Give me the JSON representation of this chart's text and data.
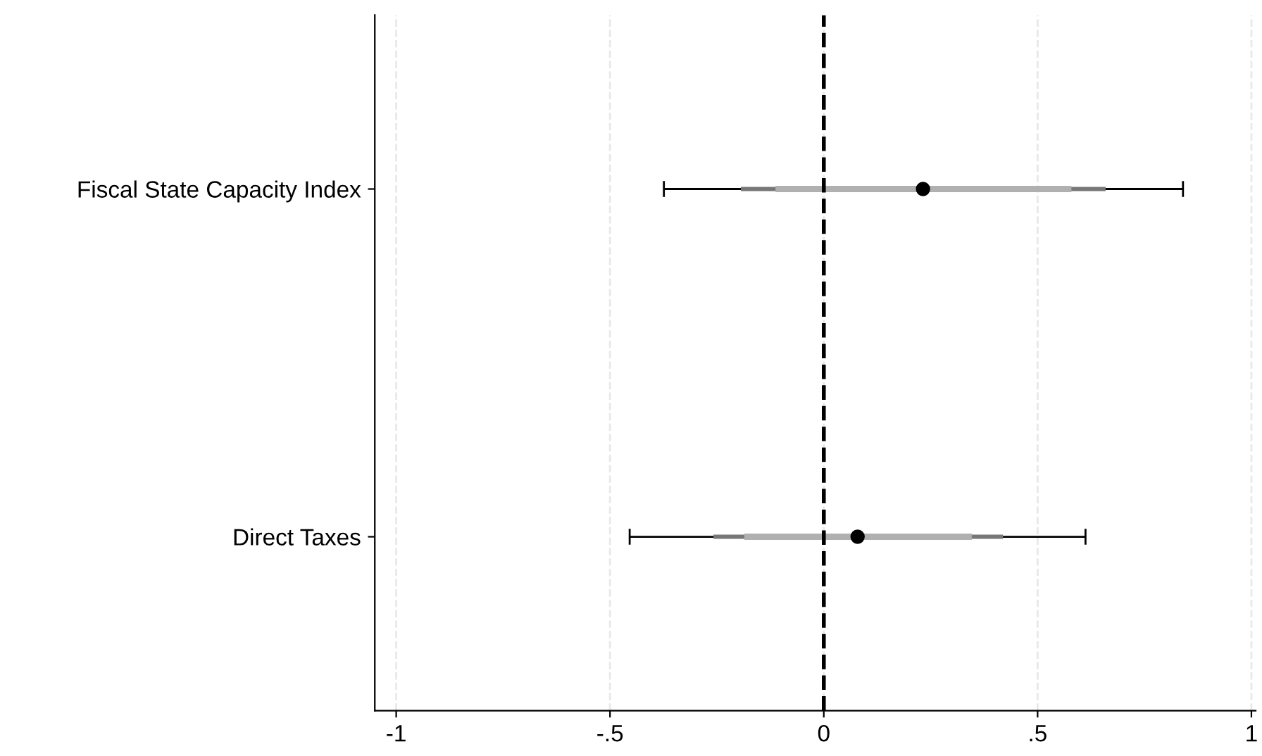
{
  "chart_data": {
    "type": "scatter",
    "orientation": "horizontal",
    "categories": [
      "Fiscal State Capacity Index",
      "Direct Taxes"
    ],
    "series": [
      {
        "type": "bar",
        "color": "#777777",
        "base": [
          -0.194,
          -0.258
        ],
        "values": [
          0.853,
          0.677
        ]
      },
      {
        "type": "bar",
        "color": "#b0b0b0",
        "base": [
          -0.113,
          -0.186
        ],
        "values": [
          0.692,
          0.532
        ]
      },
      {
        "color": "#000000",
        "marker": "circle",
        "values": [
          0.232,
          0.079
        ],
        "errors": [
          [
            -0.374,
            0.84
          ],
          [
            -0.454,
            0.612
          ]
        ]
      }
    ],
    "xlim": [
      -1.05,
      1.01
    ],
    "xticks": [
      {
        "value": -1,
        "label": "-1"
      },
      {
        "value": -0.5,
        "label": "-.5"
      },
      0,
      {
        "value": 0.5,
        "label": ".5"
      },
      1
    ],
    "ref_lines": [
      {
        "axis": "x",
        "value": 0,
        "line_style": "dashed",
        "color": "#000000"
      }
    ],
    "grid": "x"
  }
}
